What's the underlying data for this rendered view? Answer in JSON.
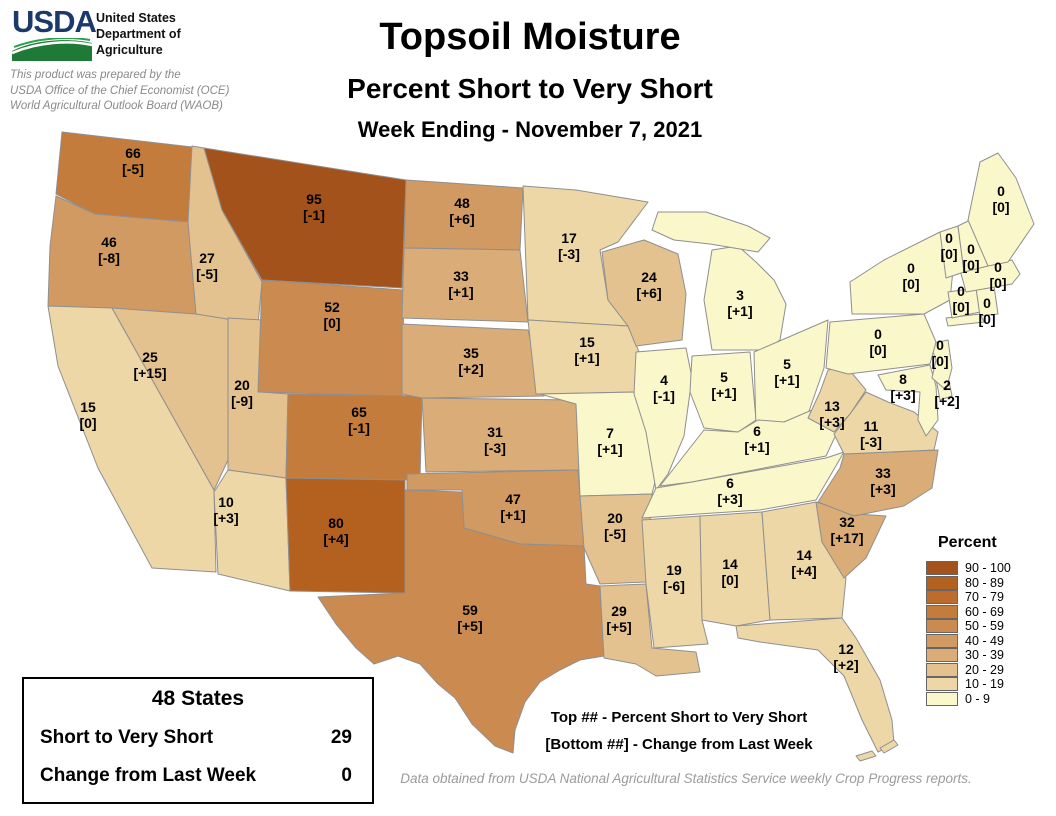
{
  "header": {
    "logo_text": "USDA",
    "agency_lines": [
      "United States",
      "Department of",
      "Agriculture"
    ],
    "prepared_by_lines": [
      "This product was prepared by the",
      "USDA Office of the Chief Economist (OCE)",
      "World Agricultural Outlook Board (WAOB)"
    ],
    "logo_colors": {
      "wordmark": "#1B3A6B",
      "field": "#1F7A38"
    }
  },
  "title": {
    "main": "Topsoil Moisture",
    "subtitle": "Percent Short to Very Short",
    "week_ending": "Week Ending - November 7, 2021"
  },
  "legend": {
    "title": "Percent",
    "bins": [
      {
        "range": "90 - 100",
        "color": "#A4521C"
      },
      {
        "range": "80 - 89",
        "color": "#B4601F"
      },
      {
        "range": "70 - 79",
        "color": "#BE6C2D"
      },
      {
        "range": "60 - 69",
        "color": "#C47C3D"
      },
      {
        "range": "50 - 59",
        "color": "#CB8B50"
      },
      {
        "range": "40 - 49",
        "color": "#D19A63"
      },
      {
        "range": "30 - 39",
        "color": "#DAAC77"
      },
      {
        "range": "20 - 29",
        "color": "#E3C28F"
      },
      {
        "range": "10 - 19",
        "color": "#EDD7A7"
      },
      {
        "range": "0 - 9",
        "color": "#FAF7CA"
      }
    ]
  },
  "summary_box": {
    "title": "48 States",
    "rows": [
      {
        "label": "Short to Very Short",
        "value": "29"
      },
      {
        "label": "Change from Last Week",
        "value": "0"
      }
    ]
  },
  "map_notes": [
    "Top ## - Percent Short to Very Short",
    "[Bottom ##] - Change from Last Week"
  ],
  "footer": "Data obtained from USDA National Agricultural Statistics Service weekly Crop Progress reports.",
  "map": {
    "border_color": "#8f8f8f",
    "states": [
      {
        "abbr": "WA",
        "value": 66,
        "change": "[-5]"
      },
      {
        "abbr": "OR",
        "value": 46,
        "change": "[-8]"
      },
      {
        "abbr": "CA",
        "value": 15,
        "change": "[0]"
      },
      {
        "abbr": "NV",
        "value": 25,
        "change": "[+15]"
      },
      {
        "abbr": "ID",
        "value": 27,
        "change": "[-5]"
      },
      {
        "abbr": "UT",
        "value": 20,
        "change": "[-9]"
      },
      {
        "abbr": "AZ",
        "value": 10,
        "change": "[+3]"
      },
      {
        "abbr": "MT",
        "value": 95,
        "change": "[-1]"
      },
      {
        "abbr": "WY",
        "value": 52,
        "change": "[0]"
      },
      {
        "abbr": "CO",
        "value": 65,
        "change": "[-1]"
      },
      {
        "abbr": "NM",
        "value": 80,
        "change": "[+4]"
      },
      {
        "abbr": "ND",
        "value": 48,
        "change": "[+6]"
      },
      {
        "abbr": "SD",
        "value": 33,
        "change": "[+1]"
      },
      {
        "abbr": "NE",
        "value": 35,
        "change": "[+2]"
      },
      {
        "abbr": "KS",
        "value": 31,
        "change": "[-3]"
      },
      {
        "abbr": "OK",
        "value": 47,
        "change": "[+1]"
      },
      {
        "abbr": "TX",
        "value": 59,
        "change": "[+5]"
      },
      {
        "abbr": "MN",
        "value": 17,
        "change": "[-3]"
      },
      {
        "abbr": "IA",
        "value": 15,
        "change": "[+1]"
      },
      {
        "abbr": "MO",
        "value": 7,
        "change": "[+1]"
      },
      {
        "abbr": "AR",
        "value": 20,
        "change": "[-5]"
      },
      {
        "abbr": "LA",
        "value": 29,
        "change": "[+5]"
      },
      {
        "abbr": "WI",
        "value": 24,
        "change": "[+6]"
      },
      {
        "abbr": "IL",
        "value": 4,
        "change": "[-1]"
      },
      {
        "abbr": "MS",
        "value": 19,
        "change": "[-6]"
      },
      {
        "abbr": "MI",
        "value": 3,
        "change": "[+1]"
      },
      {
        "abbr": "IN",
        "value": 5,
        "change": "[+1]"
      },
      {
        "abbr": "OH",
        "value": 5,
        "change": "[+1]"
      },
      {
        "abbr": "KY",
        "value": 6,
        "change": "[+1]"
      },
      {
        "abbr": "TN",
        "value": 6,
        "change": "[+3]"
      },
      {
        "abbr": "AL",
        "value": 14,
        "change": "[0]"
      },
      {
        "abbr": "GA",
        "value": 14,
        "change": "[+4]"
      },
      {
        "abbr": "FL",
        "value": 12,
        "change": "[+2]"
      },
      {
        "abbr": "SC",
        "value": 32,
        "change": "[+17]"
      },
      {
        "abbr": "NC",
        "value": 33,
        "change": "[+3]"
      },
      {
        "abbr": "VA",
        "value": 11,
        "change": "[-3]"
      },
      {
        "abbr": "WV",
        "value": 13,
        "change": "[+3]"
      },
      {
        "abbr": "MD",
        "value": 8,
        "change": "[+3]"
      },
      {
        "abbr": "DE",
        "value": 2,
        "change": "[+2]"
      },
      {
        "abbr": "NJ",
        "value": 0,
        "change": "[0]"
      },
      {
        "abbr": "PA",
        "value": 0,
        "change": "[0]"
      },
      {
        "abbr": "NY",
        "value": 0,
        "change": "[0]"
      },
      {
        "abbr": "CT",
        "value": 0,
        "change": "[0]"
      },
      {
        "abbr": "RI",
        "value": 0,
        "change": "[0]"
      },
      {
        "abbr": "MA",
        "value": 0,
        "change": "[0]"
      },
      {
        "abbr": "VT",
        "value": 0,
        "change": "[0]"
      },
      {
        "abbr": "NH",
        "value": 0,
        "change": "[0]"
      },
      {
        "abbr": "ME",
        "value": 0,
        "change": "[0]"
      }
    ]
  },
  "chart_data": {
    "type": "heatmap",
    "title": "Topsoil Moisture - Percent Short to Very Short, Week Ending November 7, 2021",
    "value_label": "Percent Short to Very Short",
    "change_label": "Change from Last Week",
    "bins": [
      "0 - 9",
      "10 - 19",
      "20 - 29",
      "30 - 39",
      "40 - 49",
      "50 - 59",
      "60 - 69",
      "70 - 79",
      "80 - 89",
      "90 - 100"
    ],
    "categories": [
      "WA",
      "OR",
      "CA",
      "NV",
      "ID",
      "UT",
      "AZ",
      "MT",
      "WY",
      "CO",
      "NM",
      "ND",
      "SD",
      "NE",
      "KS",
      "OK",
      "TX",
      "MN",
      "IA",
      "MO",
      "AR",
      "LA",
      "WI",
      "IL",
      "MS",
      "MI",
      "IN",
      "OH",
      "KY",
      "TN",
      "AL",
      "GA",
      "FL",
      "SC",
      "NC",
      "VA",
      "WV",
      "MD",
      "DE",
      "NJ",
      "PA",
      "NY",
      "CT",
      "RI",
      "MA",
      "VT",
      "NH",
      "ME"
    ],
    "series": [
      {
        "name": "Percent Short to Very Short",
        "values": [
          66,
          46,
          15,
          25,
          27,
          20,
          10,
          95,
          52,
          65,
          80,
          48,
          33,
          35,
          31,
          47,
          59,
          17,
          15,
          7,
          20,
          29,
          24,
          4,
          19,
          3,
          5,
          5,
          6,
          6,
          14,
          14,
          12,
          32,
          33,
          11,
          13,
          8,
          2,
          0,
          0,
          0,
          0,
          0,
          0,
          0,
          0,
          0
        ]
      },
      {
        "name": "Change from Last Week",
        "values": [
          -5,
          -8,
          0,
          15,
          -5,
          -9,
          3,
          -1,
          0,
          -1,
          4,
          6,
          1,
          2,
          -3,
          1,
          5,
          -3,
          1,
          1,
          -5,
          5,
          6,
          -1,
          -6,
          1,
          1,
          1,
          1,
          3,
          0,
          4,
          2,
          17,
          3,
          -3,
          3,
          3,
          2,
          0,
          0,
          0,
          0,
          0,
          0,
          0,
          0,
          0
        ]
      }
    ],
    "national_summary": {
      "states": 48,
      "short_to_very_short": 29,
      "change_from_last_week": 0
    }
  }
}
